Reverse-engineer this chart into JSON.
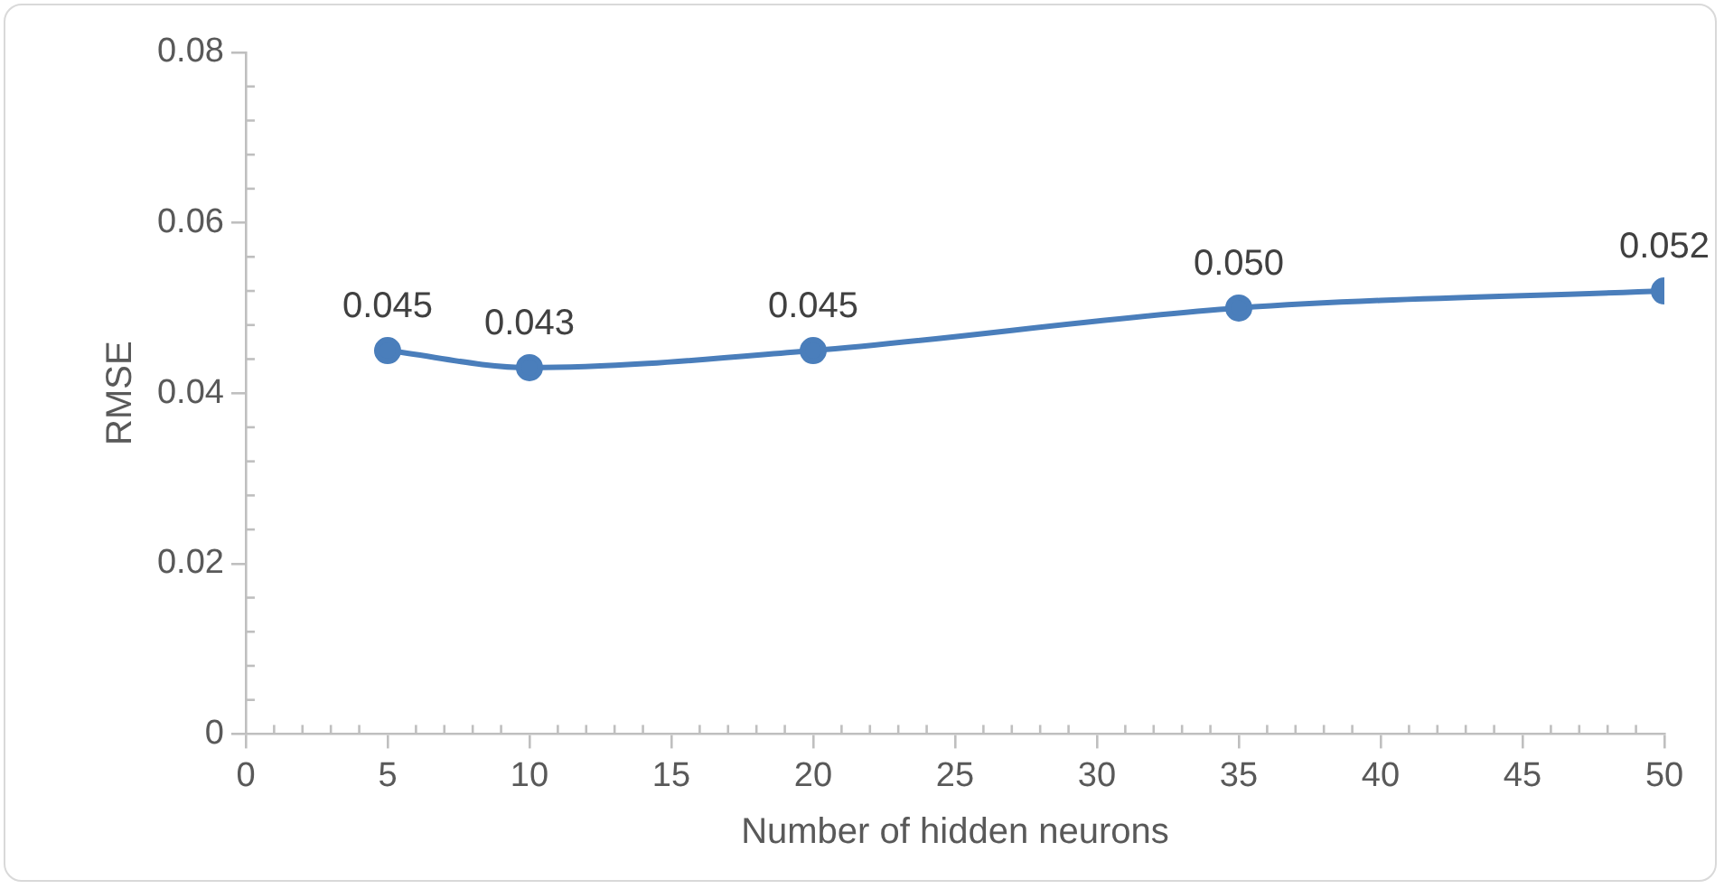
{
  "chart_data": {
    "type": "line",
    "xlabel": "Number of hidden neurons",
    "ylabel": "RMSE",
    "x": [
      5,
      10,
      20,
      35,
      50
    ],
    "series": [
      {
        "color": "#4a7ebb",
        "values": [
          0.045,
          0.043,
          0.045,
          0.05,
          0.052
        ]
      }
    ],
    "value_labels": [
      "0.045",
      "0.043",
      "0.045",
      "0.050",
      "0.052"
    ],
    "xlim": [
      0,
      50
    ],
    "ylim": [
      0,
      0.08
    ],
    "xticks": [
      0,
      {
        "value": 1,
        "label": null
      },
      {
        "value": 2,
        "label": null
      },
      {
        "value": 3,
        "label": null
      },
      {
        "value": 4,
        "label": null
      },
      5,
      {
        "value": 6,
        "label": null
      },
      {
        "value": 7,
        "label": null
      },
      {
        "value": 8,
        "label": null
      },
      {
        "value": 9,
        "label": null
      },
      10,
      {
        "value": 11,
        "label": null
      },
      {
        "value": 12,
        "label": null
      },
      {
        "value": 13,
        "label": null
      },
      {
        "value": 14,
        "label": null
      },
      15,
      {
        "value": 16,
        "label": null
      },
      {
        "value": 17,
        "label": null
      },
      {
        "value": 18,
        "label": null
      },
      {
        "value": 19,
        "label": null
      },
      20,
      {
        "value": 21,
        "label": null
      },
      {
        "value": 22,
        "label": null
      },
      {
        "value": 23,
        "label": null
      },
      {
        "value": 24,
        "label": null
      },
      25,
      {
        "value": 26,
        "label": null
      },
      {
        "value": 27,
        "label": null
      },
      {
        "value": 28,
        "label": null
      },
      {
        "value": 29,
        "label": null
      },
      30,
      {
        "value": 31,
        "label": null
      },
      {
        "value": 32,
        "label": null
      },
      {
        "value": 33,
        "label": null
      },
      {
        "value": 34,
        "label": null
      },
      35,
      {
        "value": 36,
        "label": null
      },
      {
        "value": 37,
        "label": null
      },
      {
        "value": 38,
        "label": null
      },
      {
        "value": 39,
        "label": null
      },
      40,
      {
        "value": 41,
        "label": null
      },
      {
        "value": 42,
        "label": null
      },
      {
        "value": 43,
        "label": null
      },
      {
        "value": 44,
        "label": null
      },
      45,
      {
        "value": 46,
        "label": null
      },
      {
        "value": 47,
        "label": null
      },
      {
        "value": 48,
        "label": null
      },
      {
        "value": 49,
        "label": null
      },
      50
    ],
    "yticks": [
      0,
      {
        "value": 0.004,
        "label": null
      },
      {
        "value": 0.008,
        "label": null
      },
      {
        "value": 0.012,
        "label": null
      },
      {
        "value": 0.016,
        "label": null
      },
      {
        "value": 0.02,
        "label": "0.02"
      },
      {
        "value": 0.024,
        "label": null
      },
      {
        "value": 0.028,
        "label": null
      },
      {
        "value": 0.032,
        "label": null
      },
      {
        "value": 0.036,
        "label": null
      },
      {
        "value": 0.04,
        "label": "0.04"
      },
      {
        "value": 0.044,
        "label": null
      },
      {
        "value": 0.048,
        "label": null
      },
      {
        "value": 0.052,
        "label": null
      },
      {
        "value": 0.056,
        "label": null
      },
      {
        "value": 0.06,
        "label": "0.06"
      },
      {
        "value": 0.064,
        "label": null
      },
      {
        "value": 0.068,
        "label": null
      },
      {
        "value": 0.072,
        "label": null
      },
      {
        "value": 0.076,
        "label": null
      },
      {
        "value": 0.08,
        "label": "0.08"
      }
    ],
    "marker": "circle",
    "line_style": "solid",
    "grid": false,
    "legend": false
  }
}
